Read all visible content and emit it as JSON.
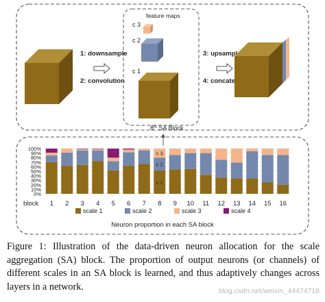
{
  "diagram": {
    "labels": {
      "feature_maps": "feature maps",
      "c3": "c 3",
      "c2": "c 2",
      "c1": "c 1",
      "step1": "1: downsample",
      "step2": "2: convolution",
      "step3": "3: upsample",
      "step4": "4: concatenate",
      "block_title_prefix": "8",
      "block_title_sup": "th",
      "block_title_suffix": " SA Block"
    },
    "colors": {
      "cube_front": "#8f6a18",
      "cube_top": "#b08d37",
      "cube_side": "#6e5010",
      "scale2": "#7488ad",
      "scale3": "#f4b58a",
      "scale4": "#8a1a72"
    }
  },
  "chart_data": {
    "type": "bar",
    "stacked": true,
    "title": "Neuron proportion in each SA block",
    "xlabel": "block",
    "ylabel": "",
    "ylim": [
      0,
      100
    ],
    "yticks": [
      "0%",
      "10%",
      "20%",
      "30%",
      "40%",
      "50%",
      "60%",
      "70%",
      "80%",
      "90%",
      "100%"
    ],
    "categories": [
      "1",
      "2",
      "3",
      "4",
      "5",
      "6",
      "7",
      "8",
      "9",
      "10",
      "11",
      "12",
      "13",
      "14",
      "15",
      "16"
    ],
    "series": [
      {
        "name": "scale 1",
        "color": "#8f6a18",
        "values": [
          70,
          62,
          64,
          72,
          52,
          62,
          66,
          52,
          54,
          55,
          42,
          36,
          34,
          34,
          25,
          20
        ]
      },
      {
        "name": "scale 2",
        "color": "#7488ad",
        "values": [
          15,
          29,
          32,
          24,
          20,
          30,
          30,
          28,
          32,
          35,
          48,
          39,
          35,
          60,
          61,
          66
        ]
      },
      {
        "name": "scale 3",
        "color": "#f4b58a",
        "values": [
          6,
          9,
          3,
          3,
          8,
          6,
          4,
          20,
          14,
          10,
          10,
          25,
          31,
          6,
          14,
          14
        ]
      },
      {
        "name": "scale 4",
        "color": "#8a1a72",
        "values": [
          9,
          0,
          1,
          1,
          20,
          2,
          0,
          0,
          0,
          0,
          0,
          0,
          0,
          0,
          0,
          0
        ]
      }
    ],
    "bar_labels_block8": [
      "c 3",
      "c 2",
      "c 1"
    ],
    "legend_position": "bottom"
  },
  "caption": {
    "label": "Figure 1:",
    "text": " Illustration of the data-driven neuron allocation for the scale aggregation (SA) block.  The proportion of output neurons (or channels) of different scales in an SA block is learned, and thus adaptively changes across layers in a network."
  },
  "watermark": "blog.csdn.net/weixin_44474718"
}
